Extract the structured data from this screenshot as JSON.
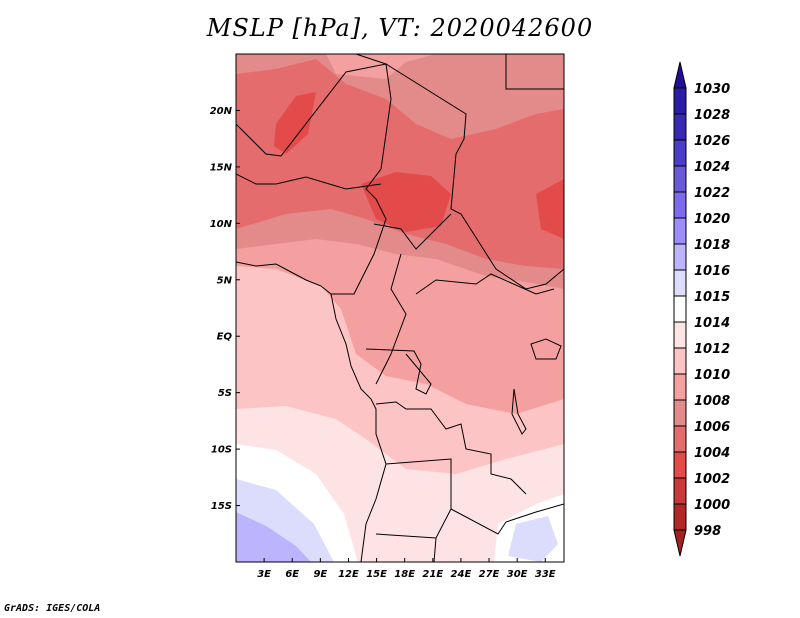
{
  "title": "MSLP [hPa], VT: 2020042600",
  "credit": "GrADS: IGES/COLA",
  "map": {
    "lat_labels": [
      {
        "lat": 20,
        "text": "20N"
      },
      {
        "lat": 15,
        "text": "15N"
      },
      {
        "lat": 10,
        "text": "10N"
      },
      {
        "lat": 5,
        "text": "5N"
      },
      {
        "lat": 0,
        "text": "EQ"
      },
      {
        "lat": -5,
        "text": "5S"
      },
      {
        "lat": -10,
        "text": "10S"
      },
      {
        "lat": -15,
        "text": "15S"
      }
    ],
    "lon_labels": [
      {
        "lon": 3,
        "text": "3E"
      },
      {
        "lon": 6,
        "text": "6E"
      },
      {
        "lon": 9,
        "text": "9E"
      },
      {
        "lon": 12,
        "text": "12E"
      },
      {
        "lon": 15,
        "text": "15E"
      },
      {
        "lon": 18,
        "text": "18E"
      },
      {
        "lon": 21,
        "text": "21E"
      },
      {
        "lon": 24,
        "text": "24E"
      },
      {
        "lon": 27,
        "text": "27E"
      },
      {
        "lon": 30,
        "text": "30E"
      },
      {
        "lon": 33,
        "text": "33E"
      }
    ],
    "lat_range": [
      -20,
      25
    ],
    "lon_range": [
      0,
      35
    ]
  },
  "colorbar": {
    "levels": [
      "1030",
      "1028",
      "1026",
      "1024",
      "1022",
      "1020",
      "1018",
      "1016",
      "1015",
      "1014",
      "1012",
      "1010",
      "1008",
      "1006",
      "1004",
      "1002",
      "1000",
      "998"
    ],
    "colors": [
      "#2a1ea6",
      "#3828b4",
      "#4a3ec8",
      "#6a5ad8",
      "#7c6cec",
      "#9c8cfc",
      "#bcb4fc",
      "#dcdcfc",
      "#ffffff",
      "#fde3e3",
      "#fcc4c4",
      "#f4a0a0",
      "#e38a8a",
      "#e46c6c",
      "#e34a4a",
      "#c83a3a",
      "#b22828"
    ],
    "top_arrow_color": "#220f98",
    "bottom_arrow_color": "#a52020"
  }
}
